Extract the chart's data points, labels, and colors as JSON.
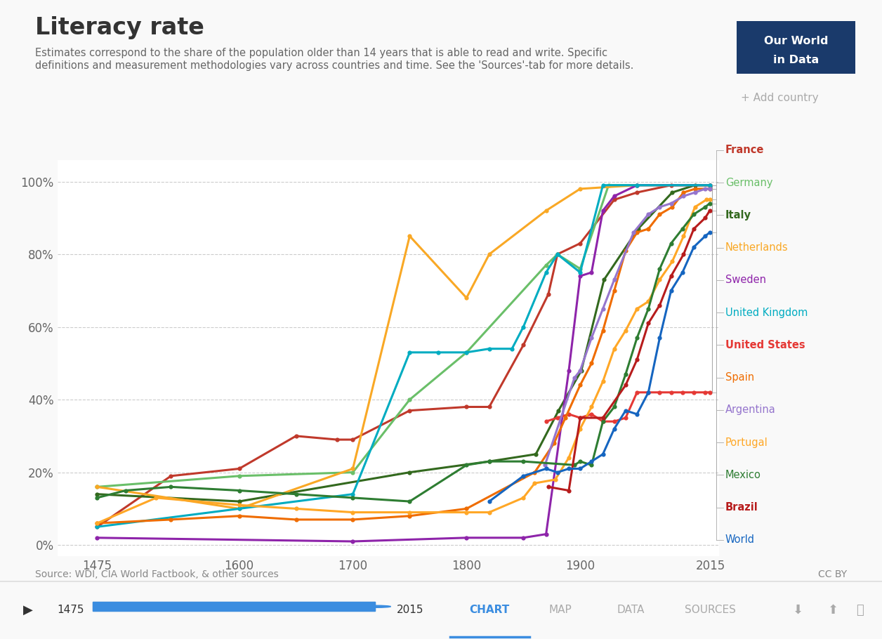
{
  "title": "Literacy rate",
  "subtitle": "Estimates correspond to the share of the population older than 14 years that is able to read and write. Specific\ndefinitions and measurement methodologies vary across countries and time. See the 'Sources'-tab for more details.",
  "source": "Source: WDI, CIA World Factbook, & other sources",
  "cc": "CC BY",
  "bg_color": "#f9f9f9",
  "plot_bg": "#ffffff",
  "add_country": "+ Add country",
  "series": {
    "France": {
      "color": "#c0392b",
      "x": [
        1475,
        1540,
        1600,
        1650,
        1686,
        1700,
        1750,
        1800,
        1820,
        1850,
        1872,
        1880,
        1900,
        1930,
        1950,
        1980,
        2014
      ],
      "y": [
        5,
        19,
        21,
        30,
        29,
        29,
        37,
        38,
        38,
        55,
        69,
        80,
        83,
        95,
        97,
        99,
        99
      ]
    },
    "Germany": {
      "color": "#6abf69",
      "x": [
        1475,
        1600,
        1700,
        1750,
        1800,
        1870,
        1880,
        1900,
        1925,
        1950,
        2014
      ],
      "y": [
        16,
        19,
        20,
        40,
        53,
        77,
        80,
        76,
        99,
        99,
        99
      ]
    },
    "Italy": {
      "color": "#33691e",
      "x": [
        1475,
        1600,
        1750,
        1820,
        1861,
        1881,
        1901,
        1921,
        1951,
        1981,
        2001,
        2014
      ],
      "y": [
        14,
        12,
        20,
        23,
        25,
        37,
        48,
        73,
        87,
        97,
        99,
        99
      ]
    },
    "Netherlands": {
      "color": "#f9a825",
      "x": [
        1475,
        1600,
        1700,
        1750,
        1800,
        1820,
        1870,
        1900,
        1950,
        2014
      ],
      "y": [
        16,
        10,
        21,
        85,
        68,
        80,
        92,
        98,
        99,
        99
      ]
    },
    "Sweden": {
      "color": "#8e24aa",
      "x": [
        1475,
        1700,
        1800,
        1850,
        1870,
        1890,
        1900,
        1910,
        1920,
        1930,
        1950,
        2014
      ],
      "y": [
        2,
        1,
        2,
        2,
        3,
        48,
        74,
        75,
        92,
        96,
        99,
        99
      ]
    },
    "United Kingdom": {
      "color": "#00acc1",
      "x": [
        1475,
        1600,
        1700,
        1750,
        1775,
        1800,
        1820,
        1840,
        1850,
        1870,
        1880,
        1900,
        1920,
        1950,
        2014
      ],
      "y": [
        5,
        10,
        14,
        53,
        53,
        53,
        54,
        54,
        60,
        75,
        80,
        75,
        99,
        99,
        99
      ]
    },
    "United States": {
      "color": "#e53935",
      "x": [
        1870,
        1880,
        1890,
        1900,
        1910,
        1920,
        1930,
        1940,
        1950,
        1960,
        1970,
        1980,
        1990,
        2000,
        2010,
        2014
      ],
      "y": [
        34,
        35,
        36,
        35,
        36,
        34,
        34,
        35,
        42,
        42,
        42,
        42,
        42,
        42,
        42,
        42
      ]
    },
    "Spain": {
      "color": "#ef6c00",
      "x": [
        1475,
        1540,
        1600,
        1650,
        1700,
        1750,
        1800,
        1860,
        1877,
        1887,
        1900,
        1910,
        1920,
        1930,
        1940,
        1950,
        1960,
        1970,
        1981,
        1991,
        2001,
        2014
      ],
      "y": [
        6,
        7,
        8,
        7,
        7,
        8,
        10,
        20,
        28,
        35,
        44,
        50,
        59,
        70,
        81,
        86,
        87,
        91,
        93,
        97,
        98,
        98
      ]
    },
    "Argentina": {
      "color": "#9575cd",
      "x": [
        1869,
        1895,
        1900,
        1910,
        1920,
        1930,
        1947,
        1960,
        1970,
        1980,
        1991,
        2001,
        2010,
        2014
      ],
      "y": [
        22,
        46,
        48,
        57,
        65,
        73,
        86,
        91,
        93,
        94,
        96,
        97,
        98,
        98
      ]
    },
    "Portugal": {
      "color": "#ffa726",
      "x": [
        1475,
        1527,
        1600,
        1650,
        1700,
        1750,
        1800,
        1820,
        1850,
        1860,
        1878,
        1890,
        1900,
        1910,
        1920,
        1930,
        1940,
        1950,
        1960,
        1970,
        1981,
        1991,
        2001,
        2011,
        2014
      ],
      "y": [
        6,
        13,
        11,
        10,
        9,
        9,
        9,
        9,
        13,
        17,
        18,
        24,
        32,
        38,
        45,
        54,
        59,
        65,
        67,
        73,
        78,
        85,
        93,
        95,
        95
      ]
    },
    "Mexico": {
      "color": "#2e7d32",
      "x": [
        1475,
        1500,
        1540,
        1600,
        1650,
        1700,
        1750,
        1800,
        1820,
        1850,
        1895,
        1900,
        1910,
        1920,
        1930,
        1940,
        1950,
        1960,
        1970,
        1980,
        1990,
        2000,
        2010,
        2014
      ],
      "y": [
        13,
        15,
        16,
        15,
        14,
        13,
        12,
        22,
        23,
        23,
        22,
        23,
        22,
        34,
        38,
        47,
        57,
        65,
        76,
        83,
        87,
        91,
        93,
        94
      ]
    },
    "Brazil": {
      "color": "#b71c1c",
      "x": [
        1872,
        1890,
        1900,
        1920,
        1940,
        1950,
        1960,
        1970,
        1980,
        1991,
        2000,
        2010,
        2014
      ],
      "y": [
        16,
        15,
        35,
        35,
        44,
        51,
        61,
        66,
        74,
        80,
        87,
        90,
        92
      ]
    },
    "World": {
      "color": "#1565c0",
      "x": [
        1820,
        1850,
        1870,
        1880,
        1890,
        1900,
        1910,
        1920,
        1930,
        1940,
        1950,
        1960,
        1970,
        1980,
        1990,
        2000,
        2010,
        2014
      ],
      "y": [
        12,
        19,
        21,
        20,
        21,
        21,
        23,
        25,
        32,
        37,
        36,
        42,
        57,
        70,
        75,
        82,
        85,
        86
      ]
    }
  },
  "legend_order": [
    "France",
    "Germany",
    "Italy",
    "Netherlands",
    "Sweden",
    "United Kingdom",
    "United States",
    "Spain",
    "Argentina",
    "Portugal",
    "Mexico",
    "Brazil",
    "World"
  ],
  "legend_bold": [
    "France",
    "Italy",
    "United States",
    "Brazil"
  ],
  "final_values": {
    "France": 99,
    "Germany": 99,
    "Italy": 99,
    "Netherlands": 99,
    "Sweden": 99,
    "United Kingdom": 99,
    "United States": 42,
    "Spain": 98,
    "Argentina": 98,
    "Portugal": 95,
    "Mexico": 94,
    "Brazil": 92,
    "World": 86
  },
  "yticks": [
    0,
    20,
    40,
    60,
    80,
    100
  ],
  "xticks": [
    1475,
    1600,
    1700,
    1800,
    1900,
    2015
  ],
  "xlim": [
    1440,
    2020
  ],
  "ylim": [
    -3,
    106
  ]
}
